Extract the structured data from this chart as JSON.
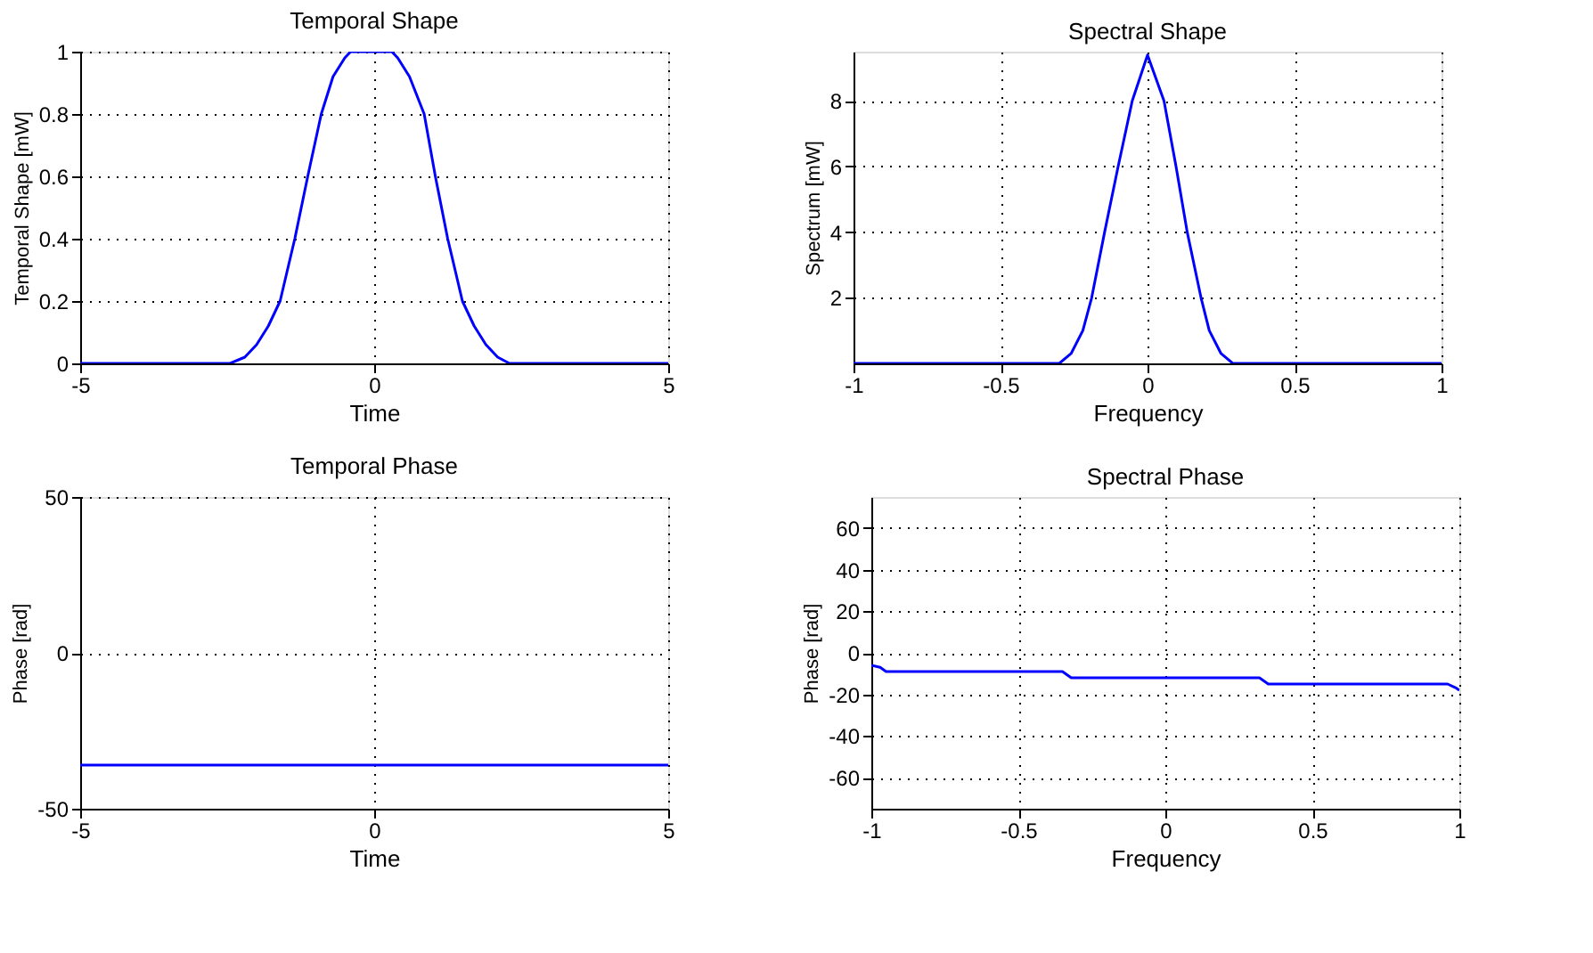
{
  "chart_data": [
    {
      "type": "line",
      "title": "Temporal Shape",
      "xlabel": "Time",
      "ylabel": "Temporal Shape [mW]",
      "xlim": [
        -5,
        5
      ],
      "xticks": [
        -5,
        0,
        5
      ],
      "ylim": [
        0,
        1
      ],
      "yticks": [
        0,
        0.2,
        0.4,
        0.6,
        0.8,
        1
      ],
      "grid": true,
      "line_style": "solid",
      "color": "#0000ff",
      "x": [
        -5,
        -2.45,
        -2.2,
        -2.0,
        -1.8,
        -1.6,
        -1.35,
        -1.13,
        -0.9,
        -0.7,
        -0.5,
        -0.4,
        0.3,
        0.4,
        0.6,
        0.85,
        1.04,
        1.25,
        1.5,
        1.7,
        1.9,
        2.1,
        2.3,
        5
      ],
      "values": [
        0,
        0,
        0.02,
        0.06,
        0.12,
        0.2,
        0.4,
        0.6,
        0.8,
        0.92,
        0.98,
        1,
        1,
        0.98,
        0.92,
        0.8,
        0.6,
        0.4,
        0.2,
        0.12,
        0.06,
        0.02,
        0,
        0
      ]
    },
    {
      "type": "line",
      "title": "Spectral Shape",
      "xlabel": "Frequency",
      "ylabel": "Spectrum [mW]",
      "xlim": [
        -1,
        1
      ],
      "xticks": [
        -1,
        -0.5,
        0,
        0.5,
        1
      ],
      "ylim": [
        0,
        9.5
      ],
      "yticks": [
        2,
        4,
        6,
        8
      ],
      "grid": true,
      "line_style": "solid",
      "color": "#0000ff",
      "x": [
        -1,
        -0.3,
        -0.26,
        -0.22,
        -0.19,
        -0.146,
        -0.1,
        -0.052,
        0,
        0.056,
        0.097,
        0.135,
        0.182,
        0.21,
        0.25,
        0.29,
        1
      ],
      "values": [
        0,
        0,
        0.3,
        1,
        2,
        4,
        6,
        8,
        9.4,
        8,
        6,
        4,
        2,
        1,
        0.3,
        0,
        0
      ]
    },
    {
      "type": "line",
      "title": "Temporal Phase",
      "xlabel": "Time",
      "ylabel": "Phase [rad]",
      "xlim": [
        -5,
        5
      ],
      "xticks": [
        -5,
        0,
        5
      ],
      "ylim": [
        -50,
        50
      ],
      "yticks": [
        -50,
        0,
        50
      ],
      "grid": true,
      "line_style": "solid",
      "color": "#0000ff",
      "x": [
        -5,
        5
      ],
      "values": [
        -36,
        -36
      ]
    },
    {
      "type": "line",
      "title": "Spectral Phase",
      "xlabel": "Frequency",
      "ylabel": "Phase [rad]",
      "xlim": [
        -1,
        1
      ],
      "xticks": [
        -1,
        -0.5,
        0,
        0.5,
        1
      ],
      "ylim": [
        -75,
        75
      ],
      "yticks": [
        -60,
        -40,
        -20,
        0,
        20,
        40,
        60
      ],
      "grid": true,
      "line_style": "solid",
      "color": "#0000ff",
      "x": [
        -1,
        -0.97,
        -0.95,
        -0.35,
        -0.32,
        0.32,
        0.35,
        0.96,
        0.99,
        1
      ],
      "values": [
        -6,
        -7,
        -9,
        -9,
        -12,
        -12,
        -15,
        -15,
        -17,
        -18
      ]
    }
  ]
}
